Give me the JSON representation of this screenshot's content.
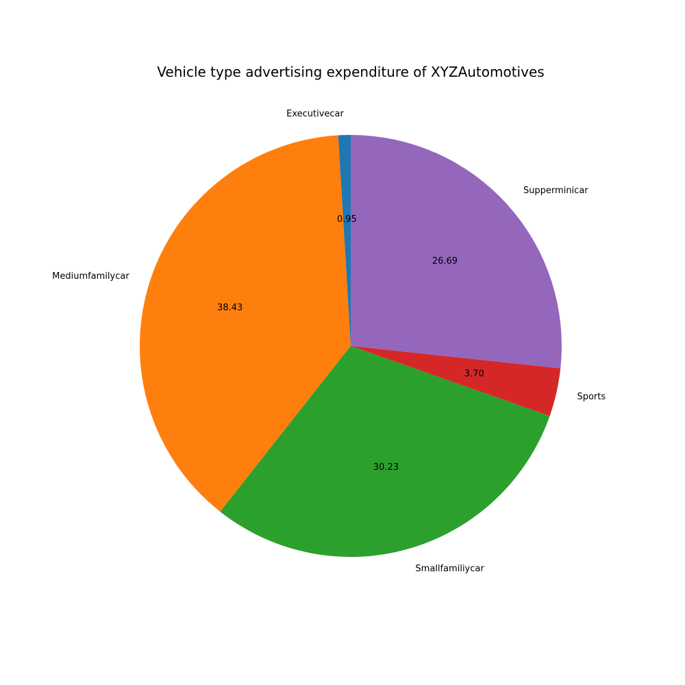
{
  "chart_data": {
    "type": "pie",
    "title": "Vehicle type advertising expenditure of XYZAutomotives",
    "slices": [
      {
        "label": "Executivecar",
        "value": 0.95,
        "value_label": "0.95",
        "color": "#1f77b4"
      },
      {
        "label": "Mediumfamilycar",
        "value": 38.43,
        "value_label": "38.43",
        "color": "#ff7f0e"
      },
      {
        "label": "Smallfamiliycar",
        "value": 30.23,
        "value_label": "30.23",
        "color": "#2ca02c"
      },
      {
        "label": "Sports",
        "value": 3.7,
        "value_label": "3.70",
        "color": "#d62728"
      },
      {
        "label": "Supperminicar",
        "value": 26.69,
        "value_label": "26.69",
        "color": "#9467bd"
      }
    ],
    "start_angle_deg": 90,
    "direction": "counterclockwise",
    "legend": "none"
  }
}
